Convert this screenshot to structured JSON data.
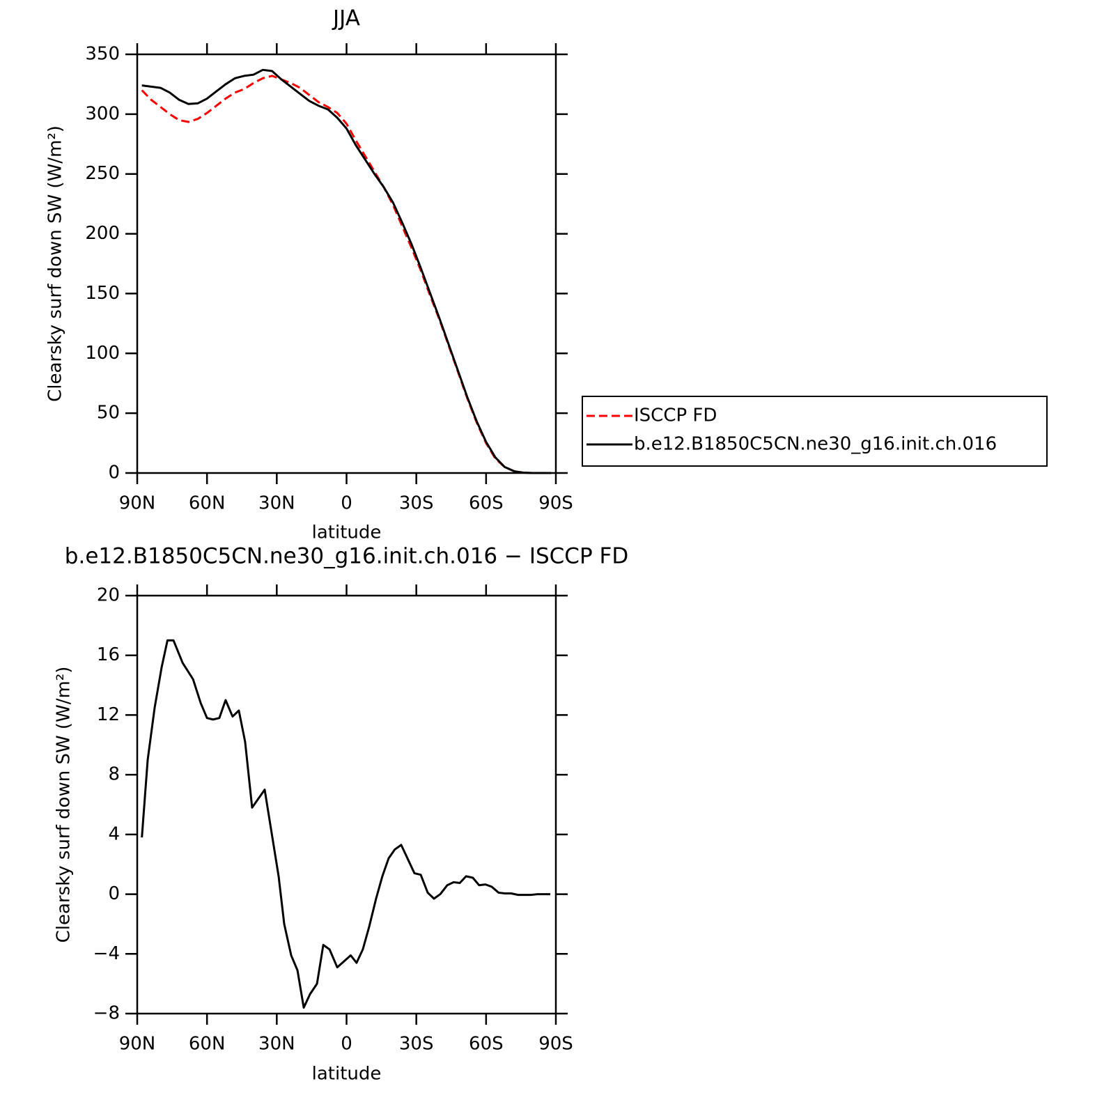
{
  "chart_data": [
    {
      "type": "line",
      "title": "JJA",
      "xlabel": "latitude",
      "ylabel": "Clearsky surf down SW (W/m²)",
      "x": [
        88,
        84,
        80,
        76,
        72,
        68,
        64,
        60,
        56,
        52,
        48,
        44,
        40,
        36,
        32,
        28,
        24,
        20,
        16,
        12,
        8,
        4,
        0,
        -4,
        -8,
        -12,
        -16,
        -20,
        -24,
        -28,
        -32,
        -36,
        -40,
        -44,
        -48,
        -52,
        -56,
        -60,
        -64,
        -68,
        -72,
        -76,
        -80,
        -84,
        -88
      ],
      "series": [
        {
          "name": "ISCCP FD",
          "color": "#ff0000",
          "dashed": true,
          "values": [
            320,
            312,
            306,
            300,
            295,
            293.5,
            296,
            301,
            307,
            313,
            318,
            321,
            326,
            330,
            332,
            329,
            326,
            322,
            316,
            310,
            306,
            301,
            292,
            278,
            265,
            252,
            239,
            224,
            206,
            188,
            169,
            148,
            128,
            106,
            84,
            62,
            42,
            25,
            12,
            5,
            1.5,
            0.3,
            0,
            0,
            0
          ]
        },
        {
          "name": "b.e12.B1850C5CN.ne30_g16.init.ch.016",
          "color": "#000000",
          "dashed": false,
          "values": [
            324,
            323,
            322,
            318,
            312,
            308.5,
            309,
            313,
            319,
            325,
            330,
            332,
            333,
            337,
            336,
            329,
            323,
            317,
            311,
            307,
            304,
            297,
            288,
            274,
            262,
            250,
            239,
            226,
            209,
            191,
            171,
            150,
            129,
            107,
            85,
            63,
            43,
            26,
            13,
            5,
            1.5,
            0.3,
            0,
            0,
            0
          ]
        }
      ],
      "xlim": [
        90,
        -90
      ],
      "xticks": [
        {
          "value": 90,
          "label": "90N"
        },
        {
          "value": 60,
          "label": "60N"
        },
        {
          "value": 30,
          "label": "30N"
        },
        0,
        {
          "value": -30,
          "label": "30S"
        },
        {
          "value": -60,
          "label": "60S"
        },
        {
          "value": -90,
          "label": "90S"
        }
      ],
      "ylim": [
        0,
        350
      ],
      "yticks": [
        0,
        50,
        100,
        150,
        200,
        250,
        300,
        350
      ],
      "legend": "right"
    },
    {
      "type": "line",
      "title": "b.e12.B1850C5CN.ne30_g16.init.ch.016 − ISCCP FD",
      "xlabel": "latitude",
      "ylabel": "Clearsky surf down SW (W/m²)",
      "x": [
        88,
        85.5,
        82.5,
        79.5,
        77,
        74.4,
        70.5,
        66,
        62.7,
        60,
        57.4,
        54.7,
        52,
        49,
        46.3,
        43.6,
        40.6,
        35.2,
        29.2,
        26.8,
        23.8,
        21.1,
        18.4,
        15.7,
        12.7,
        10,
        7.3,
        4,
        -1.8,
        -4.3,
        -7,
        -9.7,
        -12.7,
        -15.4,
        -18.1,
        -20.8,
        -23.5,
        -29.2,
        -31.9,
        -34.9,
        -37.6,
        -40.3,
        -43.3,
        -46,
        -48.7,
        -51.4,
        -54.3,
        -57,
        -59.7,
        -62.4,
        -65.4,
        -68.1,
        -70.8,
        -73.8,
        -76.5,
        -79.2,
        -82.2,
        -84.9,
        -87.6
      ],
      "values": [
        3.8,
        9,
        12.5,
        15.2,
        17,
        17,
        15.5,
        14.4,
        12.8,
        11.8,
        11.7,
        11.8,
        13,
        11.9,
        12.3,
        10.2,
        5.8,
        7,
        1.2,
        -2,
        -4.1,
        -5.1,
        -7.6,
        -6.7,
        -6,
        -3.4,
        -3.7,
        -4.9,
        -4.1,
        -4.6,
        -3.7,
        -2.2,
        -0.3,
        1.2,
        2.4,
        3,
        3.3,
        1.4,
        1.3,
        0.1,
        -0.3,
        0,
        0.6,
        0.8,
        0.75,
        1.2,
        1.1,
        0.6,
        0.65,
        0.5,
        0.1,
        0.05,
        0.05,
        -0.05,
        -0.05,
        -0.05,
        0,
        0,
        0
      ],
      "color": "#000000",
      "xlim": [
        90,
        -90
      ],
      "xticks": [
        {
          "value": 90,
          "label": "90N"
        },
        {
          "value": 60,
          "label": "60N"
        },
        {
          "value": 30,
          "label": "30N"
        },
        0,
        {
          "value": -30,
          "label": "30S"
        },
        {
          "value": -60,
          "label": "60S"
        },
        {
          "value": -90,
          "label": "90S"
        }
      ],
      "ylim": [
        -8,
        20
      ],
      "yticks": [
        {
          "value": -8,
          "label": "−8"
        },
        {
          "value": -4,
          "label": "−4"
        },
        0,
        4,
        8,
        12,
        16,
        20
      ]
    }
  ]
}
